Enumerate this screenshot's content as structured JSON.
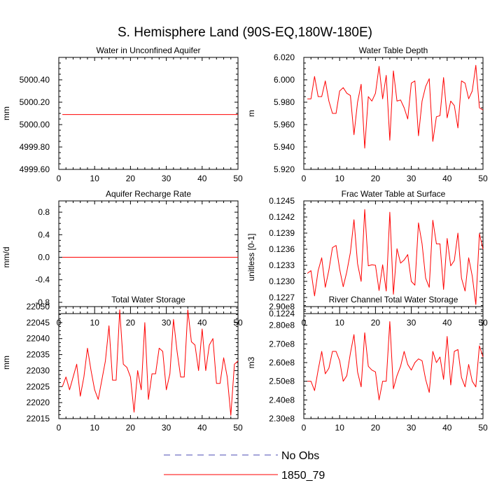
{
  "figure": {
    "title": "S. Hemisphere Land (90S-EQ,180W-180E)",
    "legend": [
      {
        "label": "No Obs",
        "color": "#4b4bb4",
        "style": "dashed"
      },
      {
        "label": "1850_79",
        "color": "#ff0000",
        "style": "solid"
      }
    ]
  },
  "chart_data": [
    {
      "type": "line",
      "title": "Water in Unconfined Aquifer",
      "ylabel": "mm",
      "xlim": [
        0,
        50
      ],
      "ylim": [
        4999.6,
        5000.6
      ],
      "xticks": [
        0,
        10,
        20,
        30,
        40,
        50
      ],
      "xticklabels": [
        "0",
        "10",
        "20",
        "30",
        "40",
        "50"
      ],
      "yticks": [
        4999.6,
        4999.8,
        5000.0,
        5000.2,
        5000.4
      ],
      "yticklabels": [
        "4999.60",
        "4999.80",
        "5000.00",
        "5000.20",
        "5000.40"
      ],
      "x_start": 1,
      "series": [
        {
          "name": "1850_79",
          "color": "#ff0000",
          "values": [
            5000.09,
            5000.09,
            5000.09,
            5000.09,
            5000.09,
            5000.09,
            5000.09,
            5000.09,
            5000.09,
            5000.09,
            5000.09,
            5000.09,
            5000.09,
            5000.09,
            5000.09,
            5000.09,
            5000.09,
            5000.09,
            5000.09,
            5000.09,
            5000.09,
            5000.09,
            5000.09,
            5000.09,
            5000.09,
            5000.09,
            5000.09,
            5000.09,
            5000.09,
            5000.09,
            5000.09,
            5000.09,
            5000.09,
            5000.09,
            5000.09,
            5000.09,
            5000.09,
            5000.09,
            5000.09,
            5000.09,
            5000.09,
            5000.09,
            5000.09,
            5000.09,
            5000.09,
            5000.09,
            5000.09,
            5000.09,
            5000.09,
            5000.09
          ]
        }
      ]
    },
    {
      "type": "line",
      "title": "Water Table Depth",
      "ylabel": "m",
      "xlim": [
        0,
        50
      ],
      "ylim": [
        5.92,
        6.02
      ],
      "xticks": [
        0,
        10,
        20,
        30,
        40,
        50
      ],
      "xticklabels": [
        "0",
        "10",
        "20",
        "30",
        "40",
        "50"
      ],
      "yticks": [
        5.92,
        5.94,
        5.96,
        5.98,
        6.0,
        6.02
      ],
      "yticklabels": [
        "5.920",
        "5.940",
        "5.960",
        "5.980",
        "6.000",
        "6.020"
      ],
      "x_start": 1,
      "series": [
        {
          "name": "1850_79",
          "color": "#ff0000",
          "values": [
            5.983,
            5.983,
            6.003,
            5.985,
            5.985,
            5.999,
            5.981,
            5.97,
            5.97,
            5.99,
            5.993,
            5.988,
            5.986,
            5.951,
            5.98,
            5.996,
            5.939,
            5.985,
            5.981,
            5.988,
            6.012,
            5.983,
            6.004,
            5.946,
            6.008,
            5.981,
            5.982,
            5.975,
            5.965,
            5.997,
            5.999,
            5.95,
            5.981,
            5.994,
            6.001,
            5.945,
            5.967,
            5.968,
            6.002,
            5.966,
            5.981,
            5.977,
            5.957,
            5.999,
            5.997,
            5.983,
            5.99,
            6.013,
            5.975,
            5.973
          ]
        }
      ]
    },
    {
      "type": "line",
      "title": "Aquifer Recharge Rate",
      "ylabel": "mm/d",
      "xlim": [
        0,
        50
      ],
      "ylim": [
        -1.0,
        1.0
      ],
      "xticks": [
        0,
        10,
        20,
        30,
        40,
        50
      ],
      "xticklabels": [
        "0",
        "10",
        "20",
        "30",
        "40",
        "50"
      ],
      "yticks": [
        -0.8,
        -0.4,
        0.0,
        0.4,
        0.8
      ],
      "yticklabels": [
        "-0.8",
        "-0.4",
        "0.0",
        "0.4",
        "0.8"
      ],
      "x_start": 1,
      "series": [
        {
          "name": "1850_79",
          "color": "#ff0000",
          "values": [
            0,
            0,
            0,
            0,
            0,
            0,
            0,
            0,
            0,
            0,
            0,
            0,
            0,
            0,
            0,
            0,
            0,
            0,
            0,
            0,
            0,
            0,
            0,
            0,
            0,
            0,
            0,
            0,
            0,
            0,
            0,
            0,
            0,
            0,
            0,
            0,
            0,
            0,
            0,
            0,
            0,
            0,
            0,
            0,
            0,
            0,
            0,
            0,
            0,
            0
          ]
        }
      ]
    },
    {
      "type": "line",
      "title": "Frac Water Table at Surface",
      "ylabel": "unitless [0-1]",
      "xlim": [
        0,
        50
      ],
      "ylim": [
        0.1224,
        0.1245
      ],
      "xticks": [
        0,
        10,
        20,
        30,
        40,
        50
      ],
      "xticklabels": [
        "0",
        "10",
        "20",
        "30",
        "40",
        "50"
      ],
      "yticks": [
        0.1224,
        0.1227,
        0.123,
        0.1233,
        0.1236,
        0.1239,
        0.1242,
        0.1245
      ],
      "yticklabels": [
        "0.1224",
        "0.1227",
        "0.1230",
        "0.1233",
        "0.1236",
        "0.1239",
        "0.1242",
        "0.1245"
      ],
      "x_start": 1,
      "series": [
        {
          "name": "1850_79",
          "color": "#ff0000",
          "values": [
            0.12315,
            0.1232,
            0.12273,
            0.1232,
            0.12344,
            0.12289,
            0.12321,
            0.12363,
            0.12367,
            0.12323,
            0.1229,
            0.12318,
            0.12354,
            0.12415,
            0.12333,
            0.123,
            0.12434,
            0.12329,
            0.12331,
            0.1233,
            0.12283,
            0.12331,
            0.12282,
            0.12429,
            0.12276,
            0.12361,
            0.12334,
            0.1234,
            0.1235,
            0.123,
            0.12293,
            0.12409,
            0.1237,
            0.12306,
            0.12289,
            0.12414,
            0.1237,
            0.1237,
            0.12285,
            0.1238,
            0.12329,
            0.12339,
            0.1239,
            0.12306,
            0.12282,
            0.12344,
            0.1231,
            0.12257,
            0.12389,
            0.1236
          ]
        }
      ]
    },
    {
      "type": "line",
      "title": "Total Water Storage",
      "ylabel": "mm",
      "xlim": [
        0,
        50
      ],
      "ylim": [
        22015,
        22050
      ],
      "xticks": [
        0,
        10,
        20,
        30,
        40,
        50
      ],
      "xticklabels": [
        "0",
        "10",
        "20",
        "30",
        "40",
        "50"
      ],
      "yticks": [
        22015,
        22020,
        22025,
        22030,
        22035,
        22040,
        22045,
        22050
      ],
      "yticklabels": [
        "22015",
        "22020",
        "22025",
        "22030",
        "22035",
        "22040",
        "22045",
        "22050"
      ],
      "x_start": 1,
      "series": [
        {
          "name": "1850_79",
          "color": "#ff0000",
          "values": [
            22025,
            22028,
            22024,
            22028,
            22032,
            22022,
            22028,
            22037,
            22030,
            22024,
            22021,
            22027,
            22033,
            22044,
            22027,
            22027,
            22049,
            22032,
            22031,
            22028,
            22017,
            22030,
            22024,
            22045,
            22021,
            22029,
            22029,
            22037,
            22036,
            22024,
            22029,
            22046,
            22036,
            22028,
            22028,
            22049,
            22039,
            22038,
            22030,
            22043,
            22030,
            22038,
            22040,
            22026,
            22026,
            22034,
            22028,
            22016,
            22032,
            22033
          ]
        }
      ]
    },
    {
      "type": "line",
      "title": "River Channel Total Water Storage",
      "ylabel": "m3",
      "xlim": [
        0,
        50
      ],
      "ylim": [
        230000000.0,
        290000000.0
      ],
      "xticks": [
        0,
        10,
        20,
        30,
        40,
        50
      ],
      "xticklabels": [
        "0",
        "10",
        "20",
        "30",
        "40",
        "50"
      ],
      "yticks": [
        230000000.0,
        240000000.0,
        250000000.0,
        260000000.0,
        270000000.0,
        280000000.0,
        290000000.0
      ],
      "yticklabels": [
        "2.30e8",
        "2.40e8",
        "2.50e8",
        "2.60e8",
        "2.70e8",
        "2.80e8",
        "2.90e8"
      ],
      "x_start": 1,
      "series": [
        {
          "name": "1850_79",
          "color": "#ff0000",
          "values": [
            250000000.0,
            250000000.0,
            245000000.0,
            256000000.0,
            266000000.0,
            254000000.0,
            257000000.0,
            266000000.0,
            266000000.0,
            261000000.0,
            250000000.0,
            253000000.0,
            265000000.0,
            275000000.0,
            255000000.0,
            247000000.0,
            276000000.0,
            258000000.0,
            256000000.0,
            255000000.0,
            240000000.0,
            250000000.0,
            250000000.0,
            282000000.0,
            246000000.0,
            253000000.0,
            258000000.0,
            266000000.0,
            259000000.0,
            256000000.0,
            260000000.0,
            262000000.0,
            261000000.0,
            251000000.0,
            244000000.0,
            266000000.0,
            260000000.0,
            263000000.0,
            251000000.0,
            274000000.0,
            248000000.0,
            266000000.0,
            267000000.0,
            252000000.0,
            247000000.0,
            259000000.0,
            250000000.0,
            247000000.0,
            269000000.0,
            263000000.0
          ]
        }
      ]
    }
  ]
}
